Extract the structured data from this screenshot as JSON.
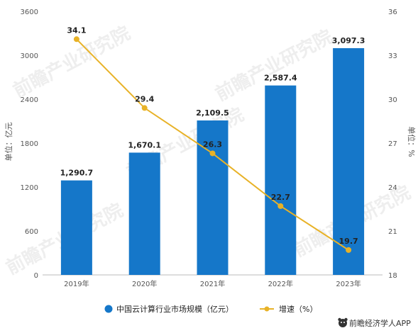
{
  "chart_data": {
    "type": "bar",
    "categories": [
      "2019年",
      "2020年",
      "2021年",
      "2022年",
      "2023年"
    ],
    "series": [
      {
        "name": "中国云计算行业市场规模（亿元）",
        "type": "bar",
        "axis": "left",
        "values": [
          1290.7,
          1670.1,
          2109.5,
          2587.4,
          3097.3
        ],
        "labels": [
          "1,290.7",
          "1,670.1",
          "2,109.5",
          "2,587.4",
          "3,097.3"
        ]
      },
      {
        "name": "增速（%）",
        "type": "line",
        "axis": "right",
        "values": [
          34.1,
          29.4,
          26.3,
          22.7,
          19.7
        ],
        "labels": [
          "34.1",
          "29.4",
          "26.3",
          "22.7",
          "19.7"
        ]
      }
    ],
    "ylabel": "单位：亿元",
    "y2label": "单位：%",
    "ylim": [
      0,
      3600
    ],
    "y2lim": [
      18,
      36
    ],
    "yticks": [
      0,
      600,
      1200,
      1800,
      2400,
      3000,
      3600
    ],
    "y2ticks": [
      18,
      21,
      24,
      27,
      30,
      33,
      36
    ],
    "legend": "bottom",
    "grid": false
  },
  "colors": {
    "bar": "#1577c9",
    "line": "#e8b227",
    "text": "#222222",
    "axis": "#bbbbbb",
    "icon_bg": "#333333"
  },
  "footer": {
    "text": "前瞻经济学人APP",
    "icon": "bear-logo-icon"
  },
  "watermark": "前瞻产业研究院"
}
